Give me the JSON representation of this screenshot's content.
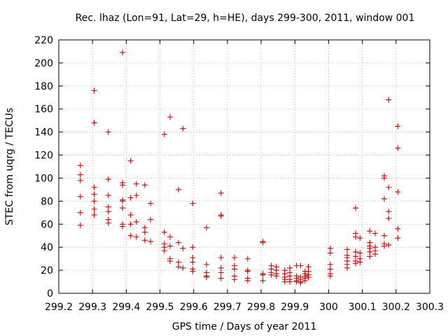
{
  "chart_data": {
    "type": "scatter",
    "title": "Rec. lhaz (Lon=91, Lat=29, h=HE), days 299-300, 2011, window 001",
    "xlabel": "GPS time / Days of year 2011",
    "ylabel": "STEC from uqrg / TECUs",
    "xlim": [
      299.2,
      300.3
    ],
    "ylim": [
      0,
      220
    ],
    "xticks": [
      "299.2",
      "299.3",
      "299.4",
      "299.5",
      "299.6",
      "299.7",
      "299.8",
      "299.9",
      "300",
      "300.1",
      "300.2",
      "300.3"
    ],
    "yticks": [
      "0",
      "20",
      "40",
      "60",
      "80",
      "100",
      "120",
      "140",
      "160",
      "180",
      "200",
      "220"
    ],
    "grid": true,
    "legend": "none",
    "marker": "plus",
    "color": "#cc0000",
    "points": [
      [
        299.264,
        111
      ],
      [
        299.264,
        103
      ],
      [
        299.264,
        98
      ],
      [
        299.264,
        84
      ],
      [
        299.264,
        70
      ],
      [
        299.264,
        59
      ],
      [
        299.305,
        176
      ],
      [
        299.305,
        148
      ],
      [
        299.305,
        92
      ],
      [
        299.305,
        86
      ],
      [
        299.305,
        80
      ],
      [
        299.305,
        73
      ],
      [
        299.305,
        68
      ],
      [
        299.347,
        140
      ],
      [
        299.347,
        99
      ],
      [
        299.347,
        85
      ],
      [
        299.347,
        75
      ],
      [
        299.347,
        71
      ],
      [
        299.347,
        64
      ],
      [
        299.347,
        61
      ],
      [
        299.389,
        209
      ],
      [
        299.389,
        96
      ],
      [
        299.389,
        94
      ],
      [
        299.389,
        81
      ],
      [
        299.389,
        80
      ],
      [
        299.389,
        74
      ],
      [
        299.389,
        60
      ],
      [
        299.389,
        58
      ],
      [
        299.413,
        115
      ],
      [
        299.413,
        83
      ],
      [
        299.413,
        68
      ],
      [
        299.413,
        60
      ],
      [
        299.413,
        50
      ],
      [
        299.43,
        95
      ],
      [
        299.43,
        85
      ],
      [
        299.43,
        62
      ],
      [
        299.43,
        49
      ],
      [
        299.455,
        94
      ],
      [
        299.455,
        57
      ],
      [
        299.455,
        53
      ],
      [
        299.455,
        46
      ],
      [
        299.472,
        78
      ],
      [
        299.472,
        64
      ],
      [
        299.472,
        45
      ],
      [
        299.513,
        138
      ],
      [
        299.513,
        53
      ],
      [
        299.513,
        43
      ],
      [
        299.513,
        40
      ],
      [
        299.513,
        37
      ],
      [
        299.53,
        153
      ],
      [
        299.53,
        49
      ],
      [
        299.53,
        41
      ],
      [
        299.53,
        30
      ],
      [
        299.53,
        28
      ],
      [
        299.555,
        90
      ],
      [
        299.555,
        44
      ],
      [
        299.555,
        27
      ],
      [
        299.555,
        23
      ],
      [
        299.568,
        143
      ],
      [
        299.568,
        39
      ],
      [
        299.568,
        22
      ],
      [
        299.597,
        78
      ],
      [
        299.597,
        40
      ],
      [
        299.597,
        31
      ],
      [
        299.597,
        27
      ],
      [
        299.597,
        21
      ],
      [
        299.597,
        19
      ],
      [
        299.638,
        57
      ],
      [
        299.638,
        25
      ],
      [
        299.638,
        18
      ],
      [
        299.638,
        15
      ],
      [
        299.638,
        14
      ],
      [
        299.681,
        87
      ],
      [
        299.681,
        68
      ],
      [
        299.681,
        67
      ],
      [
        299.681,
        31
      ],
      [
        299.681,
        22
      ],
      [
        299.681,
        18
      ],
      [
        299.681,
        13
      ],
      [
        299.721,
        31
      ],
      [
        299.721,
        24
      ],
      [
        299.721,
        21
      ],
      [
        299.721,
        15
      ],
      [
        299.721,
        12
      ],
      [
        299.76,
        30
      ],
      [
        299.76,
        20
      ],
      [
        299.76,
        19
      ],
      [
        299.76,
        13
      ],
      [
        299.76,
        11
      ],
      [
        299.805,
        45
      ],
      [
        299.805,
        44
      ],
      [
        299.805,
        17
      ],
      [
        299.805,
        16
      ],
      [
        299.805,
        11
      ],
      [
        299.83,
        24
      ],
      [
        299.83,
        21
      ],
      [
        299.83,
        18
      ],
      [
        299.83,
        16
      ],
      [
        299.845,
        23
      ],
      [
        299.845,
        20
      ],
      [
        299.845,
        17
      ],
      [
        299.845,
        15
      ],
      [
        299.87,
        20
      ],
      [
        299.87,
        17
      ],
      [
        299.87,
        14
      ],
      [
        299.87,
        12
      ],
      [
        299.87,
        10
      ],
      [
        299.885,
        22
      ],
      [
        299.885,
        18
      ],
      [
        299.885,
        15
      ],
      [
        299.885,
        12
      ],
      [
        299.885,
        10
      ],
      [
        299.905,
        24
      ],
      [
        299.905,
        15
      ],
      [
        299.905,
        13
      ],
      [
        299.905,
        11
      ],
      [
        299.905,
        10
      ],
      [
        299.917,
        24
      ],
      [
        299.917,
        14
      ],
      [
        299.917,
        12
      ],
      [
        299.917,
        10
      ],
      [
        299.917,
        9
      ],
      [
        299.93,
        19
      ],
      [
        299.93,
        17
      ],
      [
        299.93,
        15
      ],
      [
        299.93,
        13
      ],
      [
        299.93,
        11
      ],
      [
        299.94,
        23
      ],
      [
        299.94,
        19
      ],
      [
        299.94,
        16
      ],
      [
        299.94,
        14
      ],
      [
        300.005,
        39
      ],
      [
        300.005,
        35
      ],
      [
        300.005,
        25
      ],
      [
        300.005,
        21
      ],
      [
        300.005,
        17
      ],
      [
        300.005,
        15
      ],
      [
        300.055,
        38
      ],
      [
        300.055,
        33
      ],
      [
        300.055,
        31
      ],
      [
        300.055,
        28
      ],
      [
        300.055,
        25
      ],
      [
        300.055,
        22
      ],
      [
        300.08,
        74
      ],
      [
        300.08,
        52
      ],
      [
        300.08,
        49
      ],
      [
        300.08,
        36
      ],
      [
        300.08,
        32
      ],
      [
        300.08,
        28
      ],
      [
        300.08,
        26
      ],
      [
        300.093,
        48
      ],
      [
        300.093,
        35
      ],
      [
        300.093,
        30
      ],
      [
        300.093,
        27
      ],
      [
        300.122,
        54
      ],
      [
        300.122,
        44
      ],
      [
        300.122,
        41
      ],
      [
        300.122,
        39
      ],
      [
        300.122,
        36
      ],
      [
        300.122,
        32
      ],
      [
        300.138,
        52
      ],
      [
        300.138,
        40
      ],
      [
        300.138,
        37
      ],
      [
        300.138,
        34
      ],
      [
        300.165,
        102
      ],
      [
        300.165,
        100
      ],
      [
        300.165,
        82
      ],
      [
        300.165,
        50
      ],
      [
        300.165,
        43
      ],
      [
        300.165,
        41
      ],
      [
        300.178,
        168
      ],
      [
        300.178,
        92
      ],
      [
        300.178,
        71
      ],
      [
        300.178,
        65
      ],
      [
        300.178,
        42
      ],
      [
        300.205,
        145
      ],
      [
        300.205,
        126
      ],
      [
        300.205,
        88
      ],
      [
        300.205,
        56
      ],
      [
        300.205,
        48
      ]
    ]
  }
}
